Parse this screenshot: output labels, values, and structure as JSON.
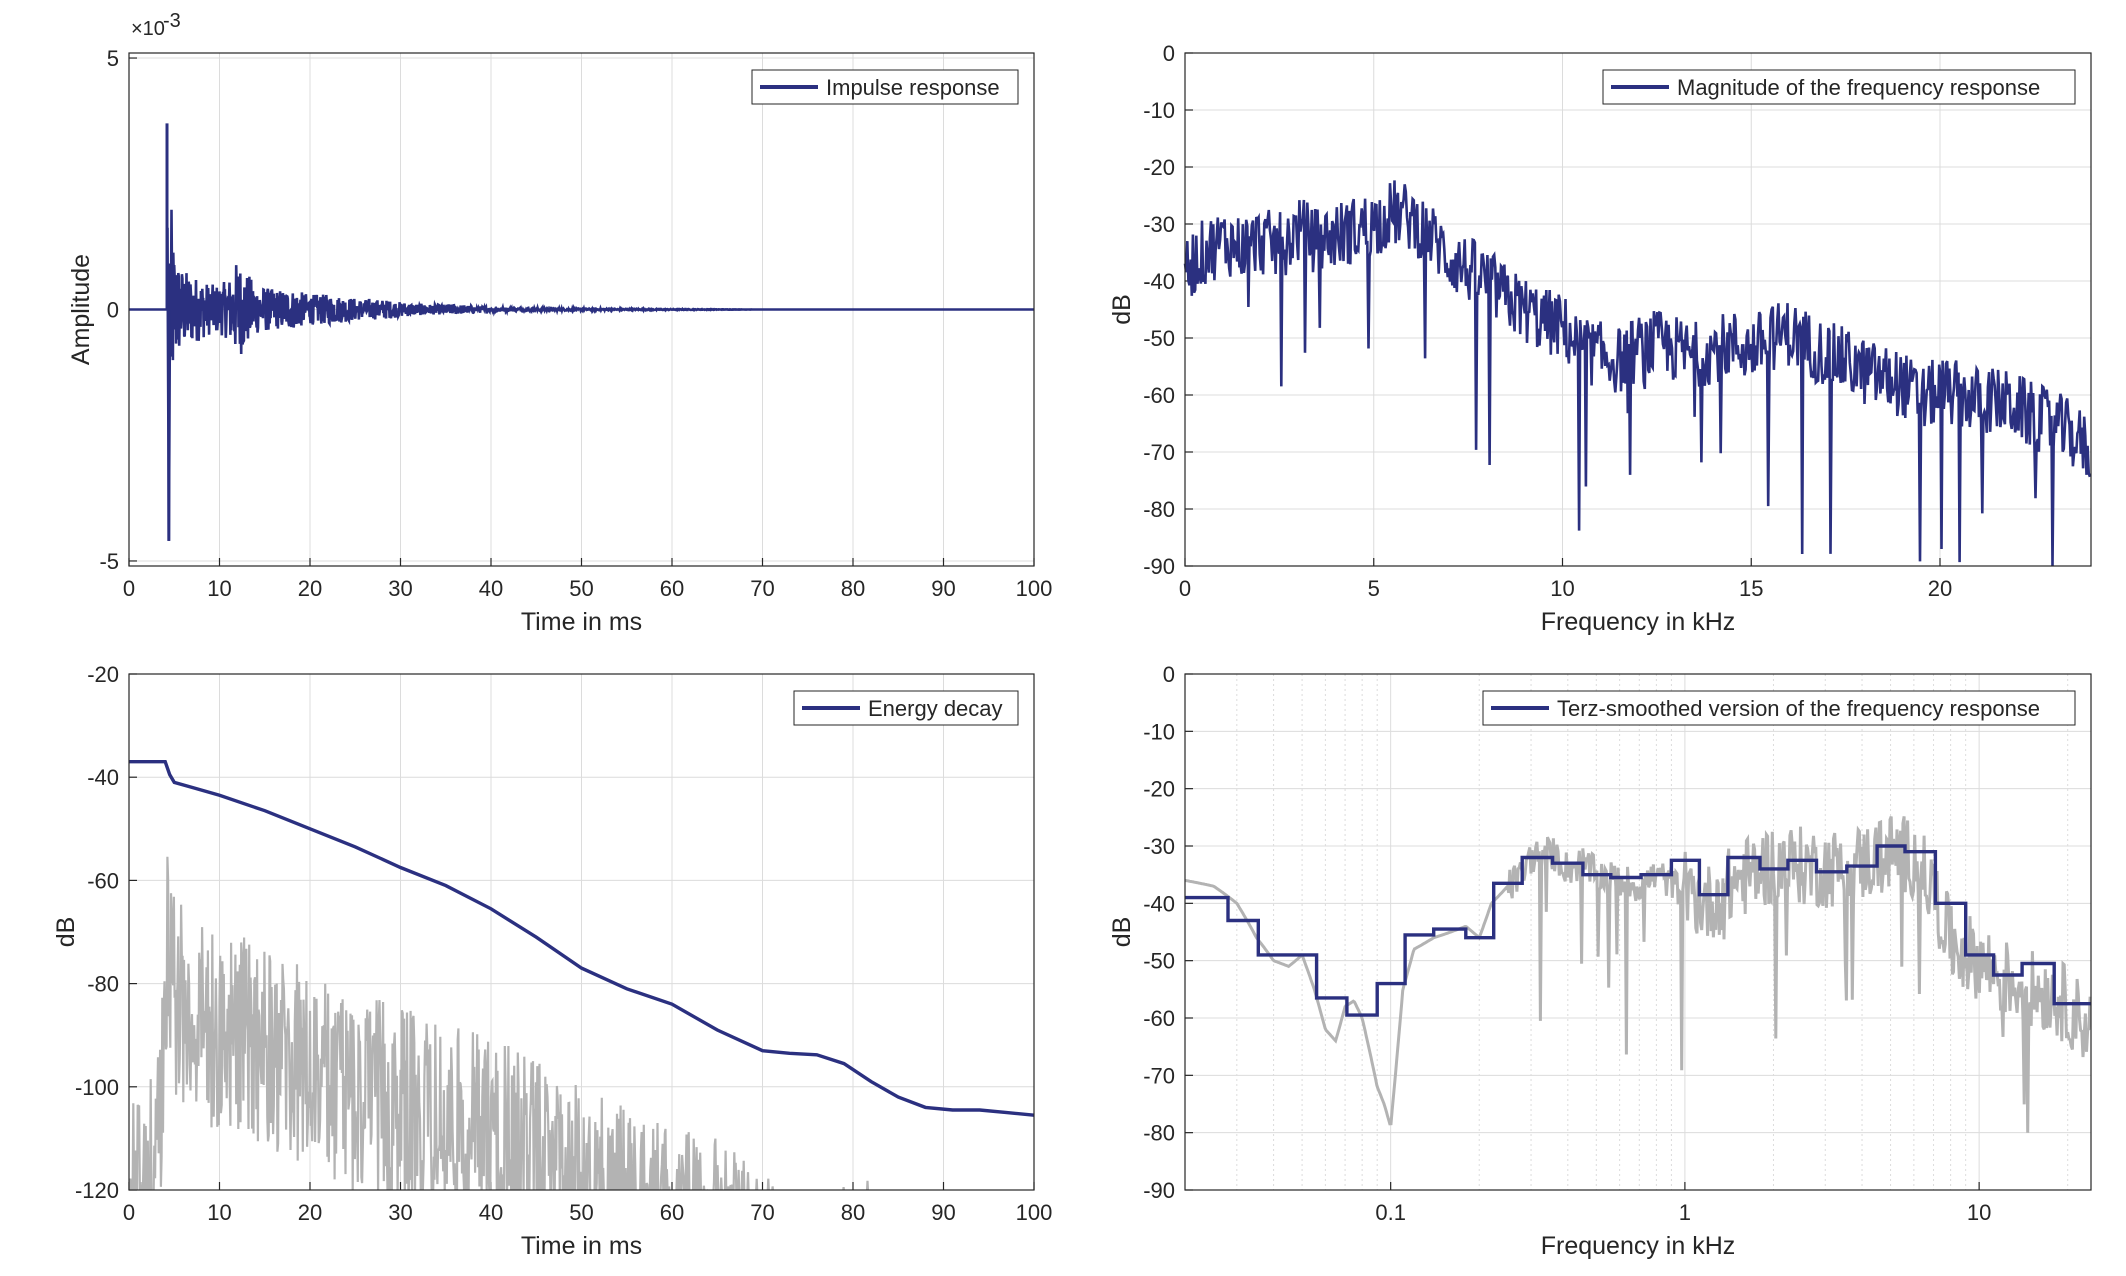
{
  "colors": {
    "series": "#2b3080",
    "reference": "#b3b3b3",
    "grid": "#dcdcdc",
    "axis": "#262626"
  },
  "chart_data": [
    {
      "type": "line",
      "xlabel": "Time in ms",
      "ylabel": "Amplitude",
      "xlim": [
        0,
        100
      ],
      "ylim": [
        -0.0051,
        0.0051
      ],
      "xticks": [
        0,
        10,
        20,
        30,
        40,
        50,
        60,
        70,
        80,
        90,
        100
      ],
      "yticks": [
        -0.005,
        0,
        0.005
      ],
      "ytick_labels": [
        "-5",
        "0",
        "5"
      ],
      "y_exponent": "×10",
      "y_exponent_power": "-3",
      "grid": true,
      "legend_position": "top-right",
      "series": [
        {
          "name": "Impulse response",
          "color": "#2b3080",
          "description_points": {
            "x": [
              0,
              4.0,
              4.2,
              4.4,
              4.6,
              4.8,
              5.2,
              5.6,
              6,
              7,
              8,
              9,
              10,
              11,
              12,
              14,
              16,
              18,
              20,
              22,
              24,
              26,
              28,
              30,
              33,
              36,
              40,
              45,
              50,
              60,
              70,
              80,
              90,
              100
            ],
            "y": [
              0,
              0,
              0.0037,
              -0.0046,
              0.0024,
              -0.0016,
              0.0011,
              -0.0009,
              0.0008,
              -0.0007,
              0.0006,
              -0.0005,
              0.0005,
              -0.0006,
              0.001,
              -0.0005,
              0.0004,
              -0.0004,
              0.0003,
              -0.0003,
              0.00025,
              -0.0002,
              0.0002,
              -0.00015,
              0.0001,
              -0.0001,
              5e-05,
              -3e-05,
              2e-05,
              1e-05,
              0,
              0,
              0,
              0
            ]
          }
        }
      ]
    },
    {
      "type": "line",
      "xlabel": "Frequency in kHz",
      "ylabel": "dB",
      "xlim": [
        0,
        24
      ],
      "ylim": [
        -90,
        0
      ],
      "xticks": [
        0,
        5,
        10,
        15,
        20
      ],
      "yticks": [
        0,
        -10,
        -20,
        -30,
        -40,
        -50,
        -60,
        -70,
        -80,
        -90
      ],
      "grid": true,
      "legend_position": "top-right",
      "series": [
        {
          "name": "Magnitude of the frequency response",
          "color": "#2b3080",
          "envelope": {
            "x": [
              0,
              0.5,
              1,
              1.5,
              2,
              2.5,
              3,
              3.5,
              4,
              4.5,
              5,
              5.5,
              6,
              6.5,
              7,
              7.5,
              8,
              8.5,
              9,
              9.5,
              10,
              10.5,
              11,
              11.5,
              12,
              12.5,
              13,
              13.5,
              14,
              14.5,
              15,
              15.5,
              16,
              16.5,
              17,
              17.5,
              18,
              18.5,
              19,
              19.5,
              20,
              20.5,
              21,
              21.5,
              22,
              22.5,
              23,
              23.5,
              24
            ],
            "y": [
              -38,
              -35,
              -33,
              -34,
              -33,
              -34,
              -31,
              -33,
              -32,
              -31,
              -30,
              -28,
              -29,
              -32,
              -36,
              -38,
              -40,
              -43,
              -45,
              -47,
              -48,
              -52,
              -53,
              -54,
              -52,
              -51,
              -52,
              -53,
              -52,
              -51,
              -52,
              -50,
              -49,
              -51,
              -53,
              -54,
              -56,
              -57,
              -58,
              -61,
              -59,
              -60,
              -61,
              -61,
              -62,
              -64,
              -65,
              -67,
              -70
            ]
          }
        }
      ]
    },
    {
      "type": "line",
      "xlabel": "Time in ms",
      "ylabel": "dB",
      "xlim": [
        0,
        100
      ],
      "ylim": [
        -120,
        -20
      ],
      "xticks": [
        0,
        10,
        20,
        30,
        40,
        50,
        60,
        70,
        80,
        90,
        100
      ],
      "yticks": [
        -20,
        -40,
        -60,
        -80,
        -100,
        -120
      ],
      "grid": true,
      "legend_position": "top-right",
      "series": [
        {
          "name": "Energy decay",
          "color": "#2b3080",
          "x": [
            0,
            4,
            4.5,
            5,
            7,
            10,
            15,
            20,
            25,
            30,
            35,
            40,
            45,
            50,
            55,
            60,
            65,
            70,
            73,
            76,
            79,
            82,
            85,
            88,
            91,
            94,
            97,
            100
          ],
          "y": [
            -37,
            -37,
            -39.5,
            -41,
            -42,
            -43.5,
            -46.5,
            -50,
            -53.5,
            -57.5,
            -61,
            -65.5,
            -71,
            -77,
            -81,
            -84,
            -89,
            -93,
            -93.5,
            -93.8,
            -95.5,
            -99,
            -102,
            -104,
            -104.5,
            -104.5,
            -105,
            -105.5
          ]
        },
        {
          "color": "#b3b3b3",
          "envelope_top": {
            "x": [
              0,
              2,
              4,
              4.3,
              5,
              8,
              12,
              16,
              20,
              25,
              30,
              35,
              40,
              45,
              50,
              55,
              60,
              65,
              70,
              72,
              75,
              78,
              80,
              82,
              84
            ],
            "y": [
              -100,
              -103,
              -75,
              -47,
              -62,
              -68,
              -70,
              -73,
              -78,
              -82,
              -84,
              -88,
              -90,
              -94,
              -100,
              -104,
              -108,
              -110,
              -115,
              -120,
              -120,
              -120,
              -118,
              -118,
              -120
            ]
          }
        }
      ]
    },
    {
      "type": "line",
      "xlabel": "Frequency in kHz",
      "ylabel": "dB",
      "xscale": "log",
      "xlim": [
        0.02,
        24
      ],
      "ylim": [
        -90,
        0
      ],
      "xticks": [
        0.1,
        1,
        10
      ],
      "xtick_labels": [
        "0.1",
        "1",
        "10"
      ],
      "yticks": [
        0,
        -10,
        -20,
        -30,
        -40,
        -50,
        -60,
        -70,
        -80,
        -90
      ],
      "grid": true,
      "legend_position": "top-right",
      "series": [
        {
          "name": "Terz-smoothed version of the frequency response",
          "color": "#2b3080",
          "step": true,
          "bands": [
            [
              0.02,
              0.028,
              -39
            ],
            [
              0.028,
              0.0355,
              -43
            ],
            [
              0.0355,
              0.045,
              -49
            ],
            [
              0.045,
              0.056,
              -49
            ],
            [
              0.056,
              0.071,
              -56.5
            ],
            [
              0.071,
              0.09,
              -59.5
            ],
            [
              0.09,
              0.112,
              -54
            ],
            [
              0.112,
              0.14,
              -45.5
            ],
            [
              0.14,
              0.18,
              -44.5
            ],
            [
              0.18,
              0.224,
              -46
            ],
            [
              0.224,
              0.28,
              -36.5
            ],
            [
              0.28,
              0.355,
              -32
            ],
            [
              0.355,
              0.45,
              -33
            ],
            [
              0.45,
              0.56,
              -35
            ],
            [
              0.56,
              0.71,
              -35.5
            ],
            [
              0.71,
              0.9,
              -35
            ],
            [
              0.9,
              1.12,
              -32.5
            ],
            [
              1.12,
              1.4,
              -38.5
            ],
            [
              1.4,
              1.8,
              -32
            ],
            [
              1.8,
              2.24,
              -34
            ],
            [
              2.24,
              2.8,
              -32.5
            ],
            [
              2.8,
              3.55,
              -34.5
            ],
            [
              3.55,
              4.5,
              -33.5
            ],
            [
              4.5,
              5.6,
              -30
            ],
            [
              5.6,
              7.1,
              -31
            ],
            [
              7.1,
              9,
              -40
            ],
            [
              9,
              11.2,
              -49
            ],
            [
              11.2,
              14,
              -52.5
            ],
            [
              14,
              18,
              -50.5
            ],
            [
              18,
              24,
              -57.5
            ]
          ]
        },
        {
          "color": "#b3b3b3",
          "x": [
            0.02,
            0.025,
            0.03,
            0.035,
            0.04,
            0.045,
            0.05,
            0.055,
            0.06,
            0.065,
            0.07,
            0.075,
            0.08,
            0.085,
            0.09,
            0.095,
            0.1,
            0.11,
            0.12,
            0.14,
            0.16,
            0.18,
            0.2,
            0.22,
            0.25,
            0.28,
            0.3,
            0.35,
            0.4,
            0.45,
            0.5,
            0.6,
            0.7,
            0.8,
            1,
            1.2,
            1.5,
            2,
            3,
            4,
            5,
            6,
            7,
            8,
            10,
            12,
            15,
            18,
            20,
            24
          ],
          "y": [
            -36,
            -37,
            -40,
            -46,
            -50,
            -51,
            -49,
            -55,
            -62,
            -64,
            -58,
            -57,
            -60,
            -66,
            -72,
            -75,
            -79,
            -55,
            -48,
            -46,
            -45,
            -44,
            -46,
            -40,
            -37,
            -35,
            -32,
            -31,
            -34,
            -33,
            -35,
            -36,
            -37,
            -35,
            -38,
            -40,
            -36,
            -33,
            -34,
            -33,
            -31,
            -32,
            -38,
            -47,
            -50,
            -53,
            -55,
            -56,
            -58,
            -62
          ]
        }
      ]
    }
  ]
}
